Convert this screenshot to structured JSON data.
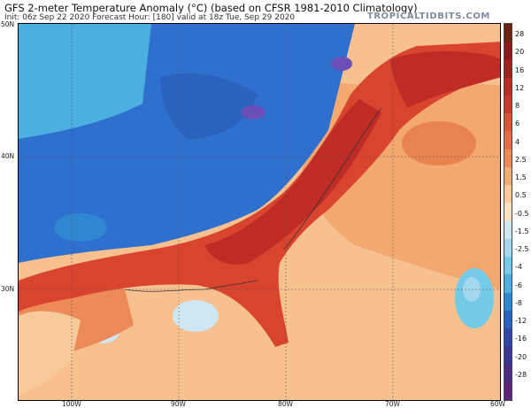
{
  "header": {
    "title": "GFS 2-meter Temperature Anomaly (°C) (based on CFSR 1981-2010 Climatology)",
    "subtitle": "Init: 06z Sep 22 2020   Forecast Hour: [180]   valid at 18z Tue, Sep 29 2020",
    "brand": "TROPICALTIDBITS.COM"
  },
  "axes": {
    "lat_labels": [
      "50N",
      "40N",
      "30N"
    ],
    "lon_labels": [
      "100W",
      "90W",
      "80W",
      "70W",
      "60W"
    ]
  },
  "colorbar": {
    "labels": [
      "28",
      "20",
      "16",
      "12",
      "8",
      "6",
      "4",
      "2.5",
      "1.5",
      "0.5",
      "-0.5",
      "-1.5",
      "-2.5",
      "-4",
      "-6",
      "-8",
      "-12",
      "-16",
      "-20",
      "-28"
    ],
    "colors": [
      "#6b2410",
      "#8a1a1a",
      "#a51f1f",
      "#bf2b25",
      "#d03a2c",
      "#dd5238",
      "#e46c46",
      "#ec8a5a",
      "#f2ab76",
      "#f7ca9a",
      "#fbe2c2",
      "#cfe6f3",
      "#a5d8ee",
      "#74cbe8",
      "#4bb0e0",
      "#2f87d2",
      "#2b62c0",
      "#2f47a8",
      "#3b3597",
      "#4a2c84",
      "#5d257a"
    ]
  },
  "map_colors": {
    "gulf_atlantic_warm": "#f7c08f",
    "atlantic_far": "#f4b683",
    "land_cold": "#2f6fce",
    "land_warm": "#d9442f",
    "land_hot": "#bf2b25",
    "cool_pale": "#a5d8ee",
    "purple": "#6a4fb8",
    "neutral": "#fbe2c2"
  }
}
